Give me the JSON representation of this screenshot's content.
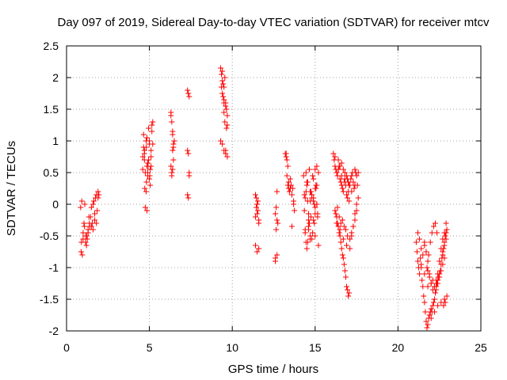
{
  "chart_data": {
    "type": "scatter",
    "title": "Day 097 of 2019, Sidereal Day-to-day VTEC variation (SDTVAR) for receiver mtcv",
    "xlabel": "GPS time / hours",
    "ylabel": "SDTVAR / TECUs",
    "xlim": [
      0,
      25
    ],
    "ylim": [
      -2,
      2.5
    ],
    "xticks": [
      0,
      5,
      10,
      15,
      20,
      25
    ],
    "xtick_labels": [
      "0",
      "5",
      "10",
      "15",
      "20",
      "25"
    ],
    "yticks": [
      -2,
      -1.5,
      -1,
      -0.5,
      0,
      0.5,
      1,
      1.5,
      2,
      2.5
    ],
    "ytick_labels": [
      "-2",
      "-1.5",
      "-1",
      "-0.5",
      "0",
      "0.5",
      "1",
      "1.5",
      "2",
      "2.5"
    ],
    "grid": true,
    "marker": "+",
    "color": "#ff0000",
    "series": [
      {
        "name": "SDTVAR",
        "x": [
          0.85,
          0.9,
          0.95,
          1.0,
          1.05,
          1.1,
          1.15,
          1.2,
          1.25,
          1.3,
          1.35,
          1.4,
          0.88,
          0.92,
          1.0,
          1.08,
          1.15,
          1.22,
          1.3,
          1.38,
          1.45,
          1.5,
          1.55,
          1.6,
          1.65,
          1.7,
          1.75,
          1.8,
          1.85,
          1.9,
          1.95,
          1.5,
          1.6,
          1.7,
          1.8,
          1.9,
          4.6,
          4.65,
          4.7,
          4.75,
          4.8,
          4.85,
          4.9,
          4.95,
          5.0,
          5.05,
          5.1,
          5.15,
          5.2,
          4.7,
          4.8,
          4.9,
          5.0,
          5.1,
          4.65,
          4.75,
          4.85,
          4.95,
          5.05,
          5.15,
          4.72,
          4.82,
          4.92,
          5.02,
          4.6,
          4.7,
          4.8,
          4.9,
          5.0,
          5.1,
          5.2,
          4.85,
          6.3,
          6.35,
          6.4,
          6.45,
          6.5,
          6.3,
          6.35,
          6.4,
          6.45,
          6.4,
          6.35,
          6.3,
          6.4,
          6.45,
          7.3,
          7.35,
          7.4,
          7.3,
          7.35,
          7.4,
          7.3,
          7.35,
          7.4,
          9.3,
          9.35,
          9.4,
          9.45,
          9.5,
          9.55,
          9.6,
          9.65,
          9.7,
          9.4,
          9.5,
          9.6,
          9.3,
          9.4,
          9.5,
          9.6,
          9.7,
          9.35,
          9.45,
          9.55,
          9.65,
          9.5,
          9.6,
          9.7,
          9.4,
          9.5,
          11.4,
          11.45,
          11.5,
          11.55,
          11.6,
          11.4,
          11.5,
          11.6,
          11.45,
          11.55,
          11.4,
          11.5,
          11.6,
          12.6,
          12.65,
          12.7,
          12.75,
          12.6,
          12.7,
          12.65,
          12.6,
          12.7,
          13.2,
          13.25,
          13.3,
          13.35,
          13.4,
          13.45,
          13.5,
          13.55,
          13.6,
          13.3,
          13.4,
          13.5,
          13.25,
          13.35,
          13.6,
          13.7,
          13.75,
          13.65,
          13.7,
          14.3,
          14.35,
          14.4,
          14.45,
          14.5,
          14.55,
          14.6,
          14.65,
          14.7,
          14.75,
          14.8,
          14.85,
          14.9,
          14.95,
          15.0,
          15.05,
          15.1,
          15.15,
          15.2,
          14.4,
          14.5,
          14.6,
          14.7,
          14.8,
          14.9,
          15.0,
          15.1,
          14.35,
          14.45,
          14.55,
          14.65,
          14.75,
          14.85,
          14.95,
          15.05,
          15.15,
          14.4,
          14.5,
          14.6,
          14.7,
          14.8,
          14.9,
          15.0,
          14.45,
          14.55,
          14.6,
          14.7,
          15.0,
          15.1,
          15.2,
          14.9,
          15.0,
          15.1,
          16.1,
          16.15,
          16.2,
          16.25,
          16.3,
          16.35,
          16.4,
          16.45,
          16.5,
          16.55,
          16.6,
          16.65,
          16.7,
          16.75,
          16.8,
          16.85,
          16.9,
          16.95,
          17.0,
          17.05,
          17.1,
          17.15,
          17.2,
          17.25,
          17.3,
          17.35,
          17.4,
          17.45,
          17.5,
          17.55,
          16.2,
          16.3,
          16.4,
          16.5,
          16.6,
          16.7,
          16.8,
          16.9,
          17.0,
          16.25,
          16.35,
          16.45,
          16.55,
          16.65,
          16.75,
          16.85,
          16.95,
          17.05,
          16.3,
          16.5,
          16.7,
          16.9,
          17.1,
          17.2,
          17.3,
          17.4,
          17.5,
          17.6,
          16.4,
          16.5,
          16.6,
          16.7,
          16.8,
          16.9,
          16.95,
          17.0,
          17.05,
          16.35,
          16.45,
          16.55,
          16.65,
          16.75,
          16.85,
          16.95,
          17.1,
          17.2,
          17.3,
          17.4,
          17.5,
          16.2,
          16.4,
          16.6,
          16.8,
          17.0,
          17.2,
          17.4,
          17.6,
          21.1,
          21.15,
          21.2,
          21.25,
          21.3,
          21.35,
          21.4,
          21.45,
          21.5,
          21.55,
          21.6,
          21.65,
          21.7,
          21.75,
          21.8,
          21.85,
          21.9,
          21.95,
          22.0,
          22.05,
          22.1,
          22.15,
          22.2,
          22.25,
          22.3,
          22.35,
          22.4,
          22.45,
          22.5,
          22.55,
          22.6,
          22.65,
          22.7,
          22.75,
          22.8,
          22.85,
          22.9,
          22.95,
          21.2,
          21.3,
          21.4,
          21.5,
          21.6,
          21.7,
          21.8,
          21.9,
          22.0,
          22.1,
          22.2,
          22.3,
          22.4,
          22.5,
          22.6,
          22.7,
          22.8,
          21.6,
          21.7,
          21.8,
          21.9,
          22.0,
          22.1,
          22.2,
          22.3,
          22.4,
          22.5,
          22.6,
          22.7,
          22.8,
          22.9,
          21.75,
          21.85,
          21.95,
          22.05,
          22.15,
          22.25,
          22.35,
          21.2,
          21.4,
          21.6,
          21.8,
          22.0,
          22.2,
          22.4,
          22.6,
          22.8,
          22.95,
          22.7,
          22.8,
          22.9,
          22.75,
          22.85
        ],
        "y": [
          -0.05,
          -0.6,
          -0.8,
          -0.45,
          -0.3,
          0.0,
          -0.5,
          -0.65,
          -0.55,
          -0.4,
          -0.2,
          -0.35,
          -0.75,
          0.05,
          -0.55,
          -0.35,
          -0.6,
          -0.5,
          -0.45,
          -0.3,
          -0.2,
          -0.05,
          -0.3,
          -0.4,
          0.05,
          -0.25,
          0.1,
          0.15,
          -0.1,
          0.2,
          0.15,
          -0.35,
          0.0,
          -0.15,
          -0.3,
          0.1,
          0.55,
          1.1,
          0.7,
          -0.05,
          0.9,
          0.6,
          0.45,
          1.2,
          1.0,
          0.3,
          0.75,
          1.25,
          0.95,
          0.8,
          0.2,
          0.65,
          0.4,
          0.85,
          0.9,
          0.5,
          1.05,
          0.7,
          0.55,
          1.15,
          0.25,
          0.35,
          0.6,
          0.45,
          0.75,
          0.85,
          1.0,
          0.5,
          0.95,
          0.6,
          1.3,
          -0.1,
          1.45,
          1.3,
          1.1,
          0.95,
          1.0,
          0.6,
          0.45,
          0.55,
          0.7,
          1.15,
          0.5,
          1.4,
          0.85,
          0.9,
          1.8,
          1.75,
          1.7,
          0.85,
          0.8,
          0.5,
          0.15,
          0.1,
          0.45,
          2.15,
          2.05,
          1.95,
          1.9,
          1.85,
          2.0,
          1.6,
          1.5,
          1.4,
          1.75,
          1.65,
          1.55,
          1.0,
          0.95,
          0.85,
          0.8,
          0.75,
          1.85,
          1.7,
          1.3,
          1.2,
          1.6,
          0.85,
          1.25,
          2.1,
          1.45,
          0.15,
          -0.05,
          -0.15,
          0.05,
          -0.3,
          -0.65,
          -0.75,
          -0.7,
          0.1,
          -0.1,
          -0.2,
          0.0,
          -0.25,
          -0.85,
          -0.05,
          0.2,
          -0.3,
          -0.15,
          -0.25,
          -0.4,
          -0.9,
          -0.8,
          0.8,
          0.75,
          0.45,
          0.3,
          0.25,
          0.2,
          0.4,
          0.3,
          0.15,
          0.7,
          0.35,
          0.25,
          0.8,
          0.6,
          -0.35,
          0.05,
          -0.1,
          0.25,
          0.0,
          0.45,
          -0.1,
          -0.4,
          -0.6,
          0.3,
          0.05,
          -0.25,
          0.55,
          0.2,
          -0.2,
          -0.55,
          0.45,
          0.05,
          -0.3,
          0.55,
          0.25,
          0.0,
          -0.15,
          0.5,
          -0.45,
          0.35,
          -0.15,
          -0.5,
          0.1,
          0.4,
          -0.05,
          0.3,
          0.15,
          0.5,
          0.35,
          -0.3,
          0.2,
          -0.45,
          0.0,
          0.3,
          -0.2,
          0.1,
          -0.7,
          -0.35,
          0.05,
          0.15,
          -0.25,
          0.25,
          0.2,
          -0.6,
          -0.4,
          -0.55,
          -0.15,
          0.0,
          -0.65,
          0.1,
          -0.5,
          0.6,
          0.8,
          0.7,
          0.6,
          0.55,
          0.5,
          0.45,
          0.55,
          0.6,
          0.4,
          0.35,
          0.3,
          0.25,
          0.2,
          0.35,
          0.4,
          0.3,
          0.15,
          0.1,
          0.2,
          0.05,
          0.3,
          0.4,
          0.45,
          0.5,
          0.35,
          0.25,
          0.55,
          0.5,
          0.45,
          0.3,
          -0.1,
          -0.2,
          -0.35,
          -0.5,
          -0.7,
          -0.85,
          -1.05,
          -1.3,
          -1.45,
          -0.15,
          -0.3,
          -0.45,
          -0.6,
          -0.8,
          -0.95,
          -1.15,
          -1.35,
          -1.4,
          -0.3,
          -0.4,
          -0.55,
          -0.65,
          -0.7,
          -0.5,
          -0.35,
          -0.15,
          0.0,
          0.1,
          0.7,
          0.6,
          0.65,
          0.55,
          0.5,
          0.45,
          0.4,
          0.35,
          0.3,
          -0.05,
          -0.2,
          -0.3,
          -0.25,
          -0.35,
          -0.4,
          -0.5,
          -0.55,
          -0.45,
          -0.35,
          -0.25,
          -0.1,
          0.75,
          0.55,
          0.45,
          0.5,
          0.35,
          0.2,
          0.3,
          0.5,
          -0.6,
          -0.75,
          -0.9,
          -1.0,
          -1.1,
          -0.85,
          -0.95,
          -1.2,
          -1.3,
          -1.45,
          -1.55,
          -1.7,
          -1.85,
          -1.95,
          -1.9,
          -1.8,
          -1.75,
          -1.7,
          -1.65,
          -1.7,
          -1.6,
          -1.55,
          -1.5,
          -1.4,
          -1.3,
          -1.25,
          -1.2,
          -1.15,
          -1.1,
          -1.05,
          -0.95,
          -0.85,
          -0.8,
          -0.7,
          -0.6,
          -0.5,
          -0.45,
          -0.4,
          -0.45,
          -0.55,
          -0.7,
          -0.8,
          -0.65,
          -0.75,
          -1.05,
          -1.15,
          -1.25,
          -1.2,
          -1.3,
          -1.35,
          -1.25,
          -1.15,
          -1.05,
          -0.95,
          -0.85,
          -0.6,
          -0.75,
          -0.9,
          -1.1,
          -1.25,
          -1.35,
          -1.3,
          -1.2,
          -1.1,
          -0.9,
          -0.7,
          -0.55,
          -0.45,
          -0.3,
          -1.0,
          -0.8,
          -0.6,
          -0.45,
          -0.35,
          -0.3,
          -0.45,
          -0.9,
          -1.0,
          -1.1,
          -1.3,
          -1.8,
          -1.7,
          -1.6,
          -1.55,
          -1.5,
          -1.45,
          -0.75,
          -0.65,
          -0.55,
          -1.6,
          -1.55
        ]
      }
    ]
  }
}
